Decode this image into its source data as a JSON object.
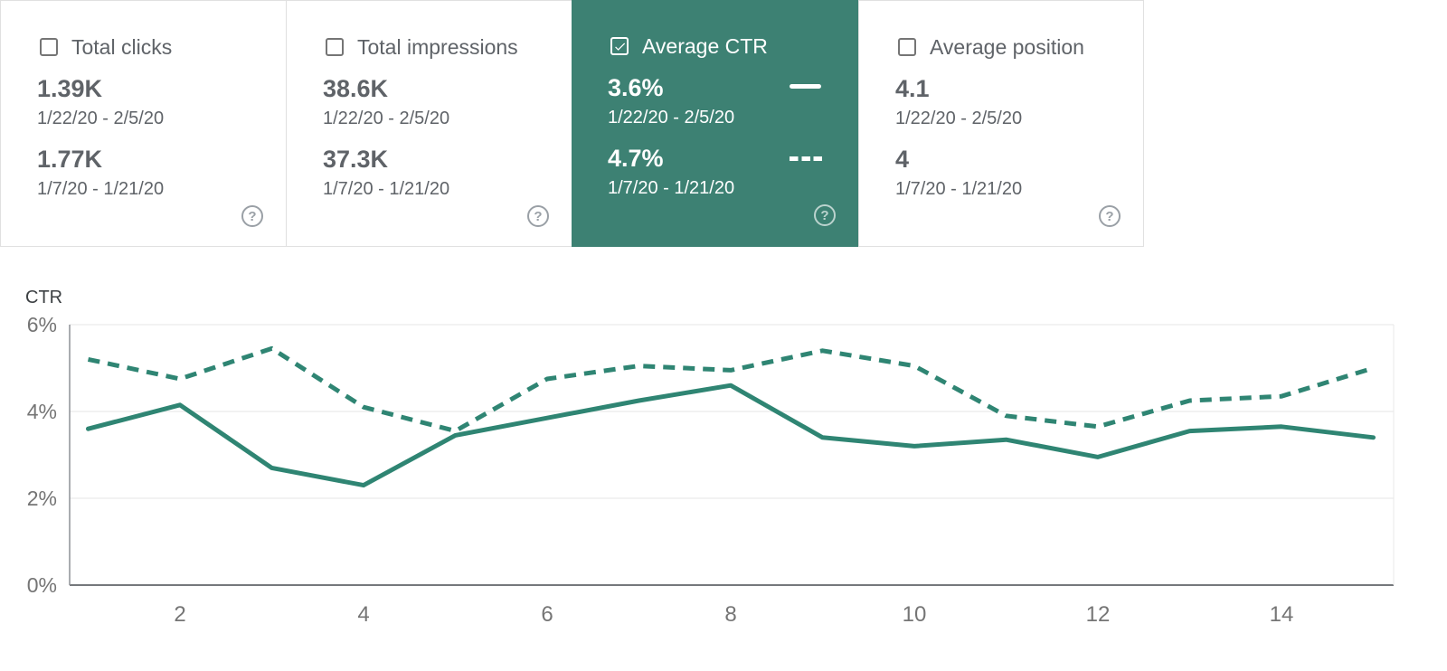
{
  "icons": {
    "help_glyph": "?"
  },
  "colors": {
    "selected_card_bg": "#3D8173",
    "line_color": "#2F8573",
    "grid_color": "#E9E9E9",
    "axis_color": "#75787C",
    "card_text_gray": "#5F6368",
    "tick_gray": "#757575",
    "card_border": "#E0E0E0"
  },
  "cards": [
    {
      "metric": "total-clicks",
      "label": "Total clicks",
      "checked": false,
      "selected": false,
      "value_current": "1.39K",
      "range_current": "1/22/20 - 2/5/20",
      "value_previous": "1.77K",
      "range_previous": "1/7/20 - 1/21/20"
    },
    {
      "metric": "total-impressions",
      "label": "Total impressions",
      "checked": false,
      "selected": false,
      "value_current": "38.6K",
      "range_current": "1/22/20 - 2/5/20",
      "value_previous": "37.3K",
      "range_previous": "1/7/20 - 1/21/20"
    },
    {
      "metric": "average-ctr",
      "label": "Average CTR",
      "checked": true,
      "selected": true,
      "value_current": "3.6%",
      "range_current": "1/22/20 - 2/5/20",
      "value_previous": "4.7%",
      "range_previous": "1/7/20 - 1/21/20"
    },
    {
      "metric": "average-position",
      "label": "Average position",
      "checked": false,
      "selected": false,
      "value_current": "4.1",
      "range_current": "1/22/20 - 2/5/20",
      "value_previous": "4",
      "range_previous": "1/7/20 - 1/21/20"
    }
  ],
  "chart_data": {
    "type": "line",
    "title": "CTR",
    "ylabel": "CTR",
    "x": [
      1,
      2,
      3,
      4,
      5,
      6,
      7,
      8,
      9,
      10,
      11,
      12,
      13,
      14,
      15
    ],
    "x_tick_values": [
      2,
      4,
      6,
      8,
      10,
      12,
      14
    ],
    "x_tick_labels": [
      "2",
      "4",
      "6",
      "8",
      "10",
      "12",
      "14"
    ],
    "y_ticks": [
      {
        "value": 0,
        "label": "0%"
      },
      {
        "value": 2,
        "label": "2%"
      },
      {
        "value": 4,
        "label": "4%"
      },
      {
        "value": 6,
        "label": "6%"
      }
    ],
    "ylim": [
      0,
      6
    ],
    "grid": true,
    "legend_position": "in-card",
    "series": [
      {
        "name": "1/22/20 - 2/5/20",
        "style": "solid",
        "values": [
          3.6,
          4.15,
          2.7,
          2.3,
          3.45,
          3.85,
          4.25,
          4.6,
          3.4,
          3.2,
          3.35,
          2.95,
          3.55,
          3.65,
          3.4
        ]
      },
      {
        "name": "1/7/20 - 1/21/20",
        "style": "dashed",
        "values": [
          5.2,
          4.75,
          5.45,
          4.1,
          3.55,
          4.75,
          5.05,
          4.95,
          5.4,
          5.05,
          3.9,
          3.65,
          4.25,
          4.35,
          5.0
        ]
      }
    ]
  }
}
